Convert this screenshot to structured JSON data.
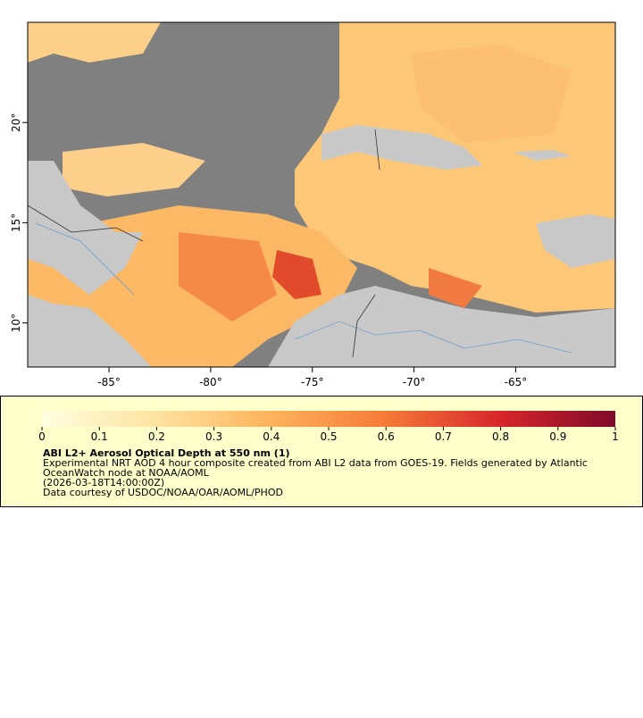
{
  "chart_data": {
    "type": "map",
    "title": "ABI L2+ Aerosol Optical Depth at 550 nm (1)",
    "description_lines": [
      "Experimental NRT AOD 4 hour composite created from ABI L2 data from GOES-19. Fields generated by Atlantic",
      "OceanWatch node at NOAA/AOML",
      "(2026-03-18T14:00:00Z)",
      "Data courtesy of USDOC/NOAA/OAR/AOML/PHOD"
    ],
    "xlim": [
      -89,
      -60.1
    ],
    "ylim": [
      7.8,
      25
    ],
    "xticks": [
      {
        "value": -85,
        "label": "-85°"
      },
      {
        "value": -80,
        "label": "-80°"
      },
      {
        "value": -75,
        "label": "-75°"
      },
      {
        "value": -70,
        "label": "-70°"
      },
      {
        "value": -65,
        "label": "-65°"
      }
    ],
    "yticks": [
      {
        "value": 10,
        "label": "10°"
      },
      {
        "value": 15,
        "label": "15°"
      },
      {
        "value": 20,
        "label": "20°"
      }
    ],
    "clim": [
      0,
      1
    ],
    "cticks": [
      0,
      0.1,
      0.2,
      0.3,
      0.4,
      0.5,
      0.6,
      0.7,
      0.8,
      0.9,
      1
    ]
  }
}
